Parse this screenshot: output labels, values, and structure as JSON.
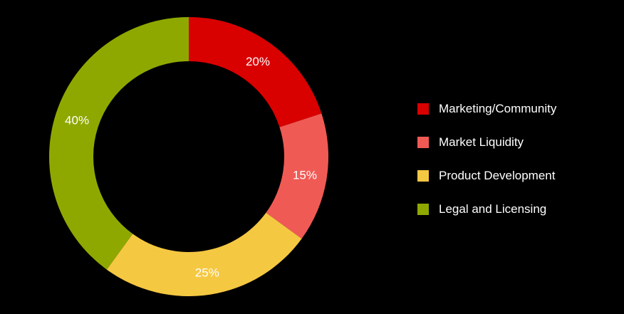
{
  "chart_data": {
    "type": "pie",
    "variant": "donut",
    "background": "#000000",
    "slices": [
      {
        "label": "Marketing/Community",
        "value": 20,
        "value_label": "20%",
        "color": "#d90000"
      },
      {
        "label": "Market Liquidity",
        "value": 15,
        "value_label": "15%",
        "color": "#f05a55"
      },
      {
        "label": "Product Development",
        "value": 25,
        "value_label": "25%",
        "color": "#f5c842"
      },
      {
        "label": "Legal and Licensing",
        "value": 40,
        "value_label": "40%",
        "color": "#8fa800"
      }
    ],
    "start_angle_deg": 270,
    "direction": "clockwise",
    "legend_position": "right"
  }
}
